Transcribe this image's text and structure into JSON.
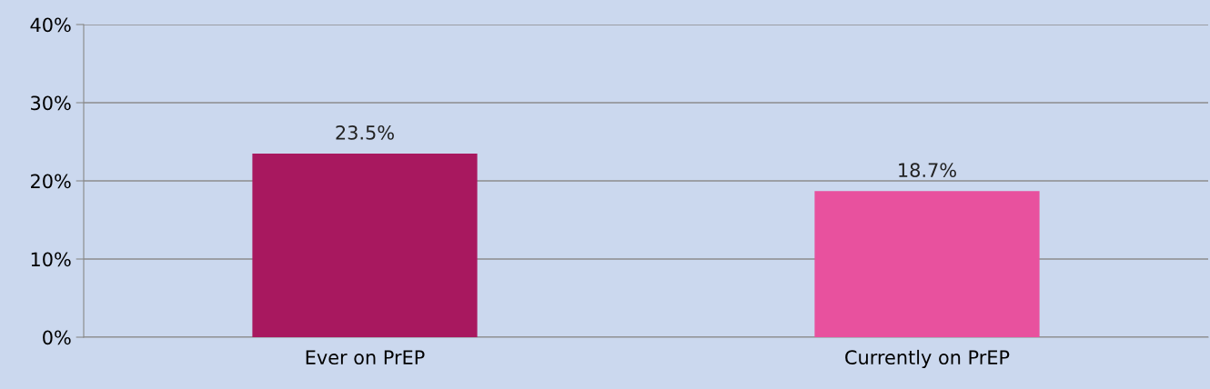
{
  "chart_data": {
    "type": "bar",
    "categories": [
      "Ever on PrEP",
      "Currently on PrEP"
    ],
    "values": [
      23.5,
      18.7
    ],
    "colors": [
      "#a8185f",
      "#e8519e"
    ],
    "value_labels": [
      "23.5%",
      "18.7%"
    ],
    "ylim": [
      0,
      40
    ],
    "yticks": [
      {
        "value": 0,
        "label": "0%"
      },
      {
        "value": 10,
        "label": "10%"
      },
      {
        "value": 20,
        "label": "20%"
      },
      {
        "value": 30,
        "label": "30%"
      },
      {
        "value": 40,
        "label": "40%"
      }
    ],
    "grid": "y",
    "legend": false
  }
}
